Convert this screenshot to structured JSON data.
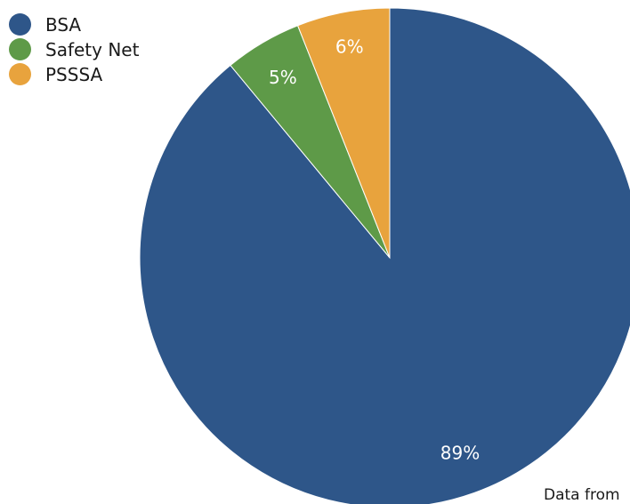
{
  "chart_data": {
    "type": "pie",
    "categories": [
      "BSA",
      "Safety Net",
      "PSSSA"
    ],
    "values": [
      89,
      5,
      6
    ],
    "data_labels": [
      "89%",
      "5%",
      "6%"
    ],
    "colors": [
      "#2e5689",
      "#5e9a48",
      "#e8a33d"
    ],
    "legend": {
      "placement": "top-left",
      "entries": [
        {
          "label": "BSA",
          "color": "#2e5689"
        },
        {
          "label": "Safety Net",
          "color": "#5e9a48"
        },
        {
          "label": "PSSSA",
          "color": "#e8a33d"
        }
      ]
    },
    "start_angle_deg": 0,
    "direction": "clockwise",
    "title": ""
  },
  "footnote": "Data from"
}
